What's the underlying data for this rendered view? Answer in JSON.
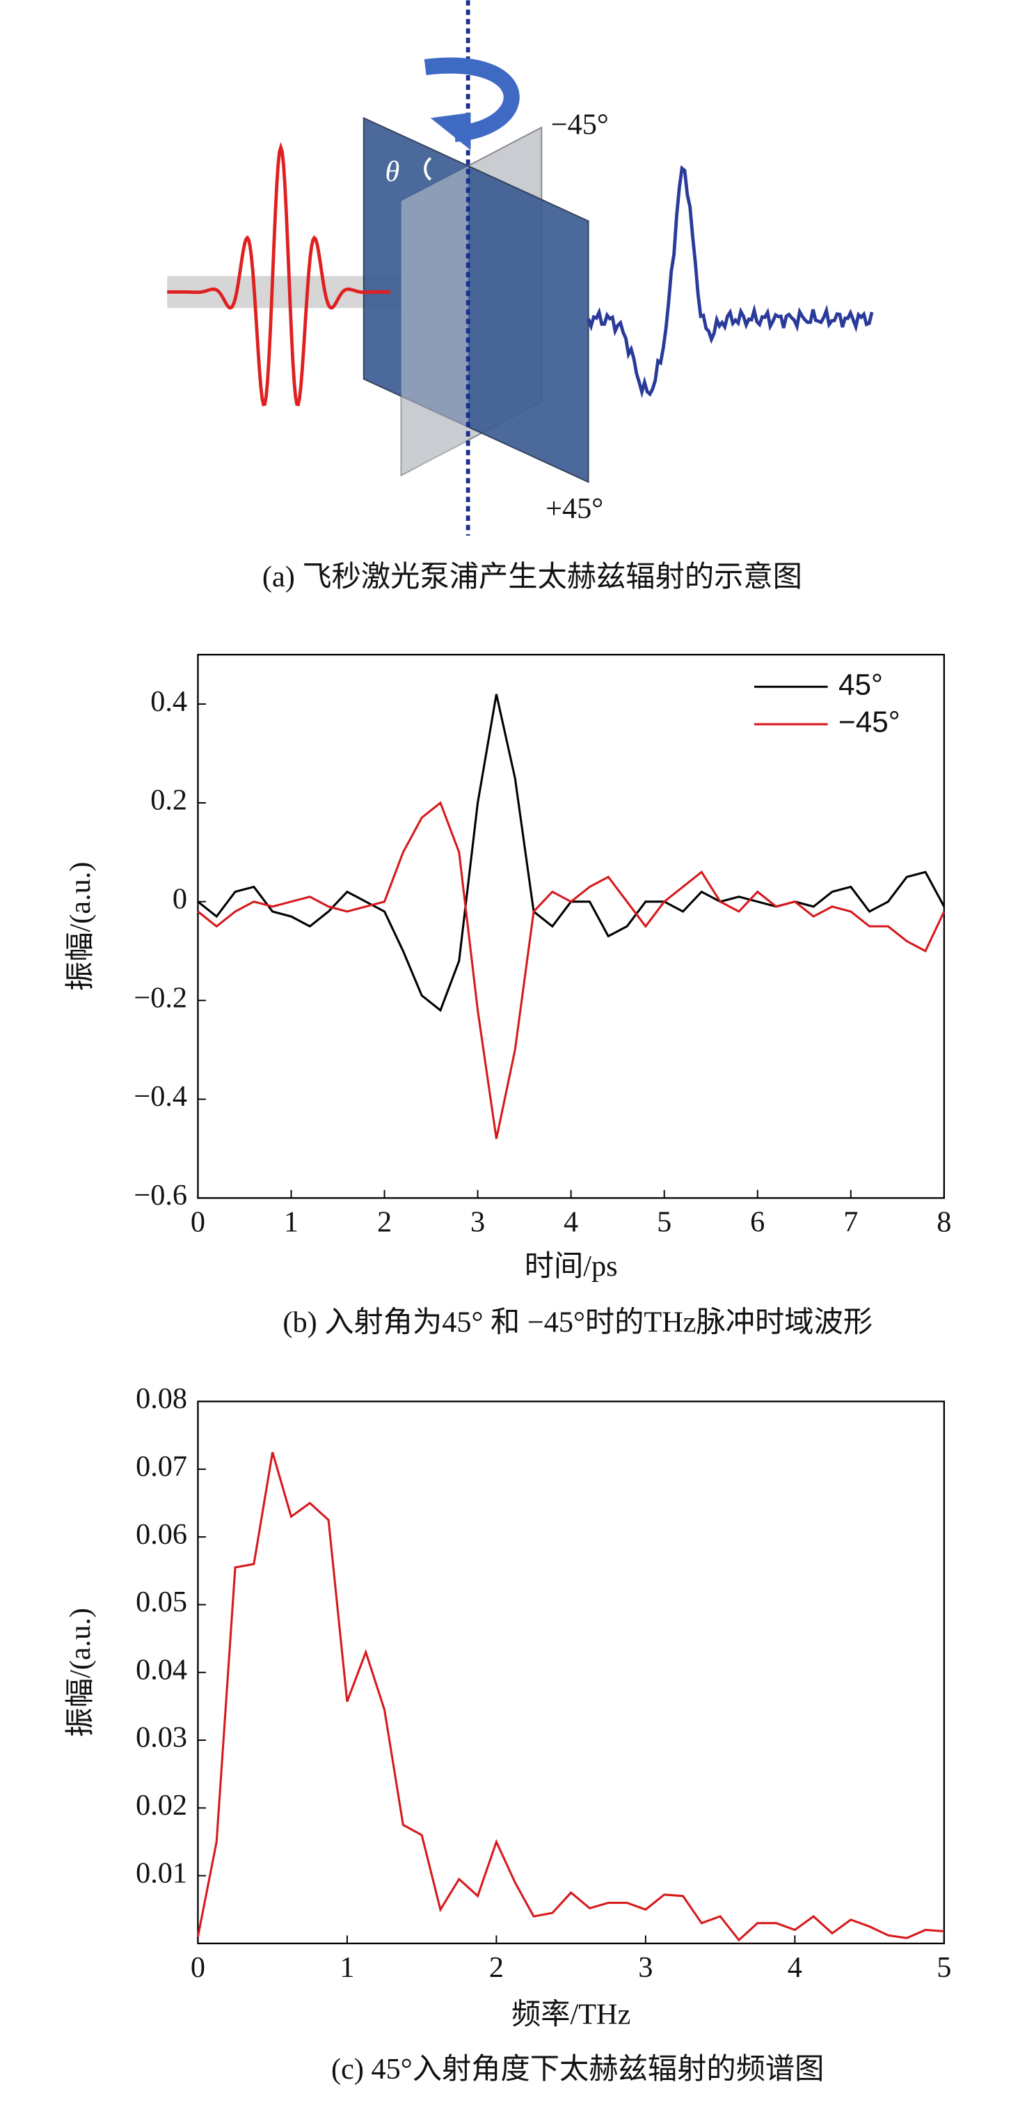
{
  "diagram": {
    "labels": [
      "−45°",
      "+45°",
      "θ"
    ],
    "caption": "(a) 飞秒激光泵浦产生太赫兹辐射的示意图"
  },
  "chart_data": [
    {
      "type": "line",
      "caption": "(b) 入射角为45° 和 −45°时的THz脉冲时域波形",
      "x_label": "时间/ps",
      "y_label": "振幅/(a.u.)",
      "x": [
        0,
        0.2,
        0.4,
        0.6,
        0.8,
        1.0,
        1.2,
        1.4,
        1.6,
        1.8,
        2.0,
        2.2,
        2.4,
        2.6,
        2.8,
        3.0,
        3.2,
        3.4,
        3.6,
        3.8,
        4.0,
        4.2,
        4.4,
        4.6,
        4.8,
        5.0,
        5.2,
        5.4,
        5.6,
        5.8,
        6.0,
        6.2,
        6.4,
        6.6,
        6.8,
        7.0,
        7.2,
        7.4,
        7.6,
        7.8,
        8.0
      ],
      "series": [
        {
          "name": "45°",
          "color": "#000000",
          "values": [
            0,
            -0.03,
            0.02,
            0.03,
            -0.02,
            -0.03,
            -0.05,
            -0.02,
            0.02,
            0.0,
            -0.02,
            -0.1,
            -0.19,
            -0.22,
            -0.12,
            0.2,
            0.42,
            0.25,
            -0.02,
            -0.05,
            0.0,
            0.0,
            -0.07,
            -0.05,
            0.0,
            0.0,
            -0.02,
            0.02,
            0.0,
            0.01,
            0.0,
            -0.01,
            0.0,
            -0.01,
            0.02,
            0.03,
            -0.02,
            0.0,
            0.05,
            0.06,
            -0.01
          ]
        },
        {
          "name": "−45°",
          "color": "#d7191c",
          "values": [
            -0.02,
            -0.05,
            -0.02,
            0.0,
            -0.01,
            0.0,
            0.01,
            -0.01,
            -0.02,
            -0.01,
            0.0,
            0.1,
            0.17,
            0.2,
            0.1,
            -0.22,
            -0.48,
            -0.3,
            -0.02,
            0.02,
            0.0,
            0.03,
            0.05,
            0.0,
            -0.05,
            0.0,
            0.03,
            0.06,
            0.0,
            -0.02,
            0.02,
            -0.01,
            0.0,
            -0.03,
            -0.01,
            -0.02,
            -0.05,
            -0.05,
            -0.08,
            -0.1,
            -0.02
          ]
        }
      ],
      "xlim": [
        0,
        8
      ],
      "xticks": [
        0,
        1,
        2,
        3,
        4,
        5,
        6,
        7,
        8
      ],
      "ylim": [
        -0.6,
        0.5
      ],
      "yticks": [
        {
          "value": -0.6,
          "label": "−0.6"
        },
        {
          "value": -0.4,
          "label": "−0.4"
        },
        {
          "value": -0.2,
          "label": "−0.2"
        },
        0,
        0.2,
        0.4
      ],
      "legend": "upper right"
    },
    {
      "type": "line",
      "caption": "(c) 45°入射角度下太赫兹辐射的频谱图",
      "x_label": "频率/THz",
      "y_label": "振幅/(a.u.)",
      "x": [
        0,
        0.125,
        0.25,
        0.375,
        0.5,
        0.625,
        0.75,
        0.875,
        1.0,
        1.125,
        1.25,
        1.375,
        1.5,
        1.625,
        1.75,
        1.875,
        2.0,
        2.125,
        2.25,
        2.375,
        2.5,
        2.625,
        2.75,
        2.875,
        3.0,
        3.125,
        3.25,
        3.375,
        3.5,
        3.625,
        3.75,
        3.875,
        4.0,
        4.125,
        4.25,
        4.375,
        4.5,
        4.625,
        4.75,
        4.875,
        5.0
      ],
      "series": [
        {
          "name": null,
          "color": "#d7191c",
          "values": [
            0.001,
            0.015,
            0.0555,
            0.056,
            0.0725,
            0.063,
            0.065,
            0.0625,
            0.0357,
            0.043,
            0.0345,
            0.0175,
            0.016,
            0.005,
            0.0095,
            0.007,
            0.015,
            0.009,
            0.004,
            0.0045,
            0.0075,
            0.0052,
            0.006,
            0.006,
            0.005,
            0.0072,
            0.007,
            0.003,
            0.004,
            0.0005,
            0.003,
            0.003,
            0.002,
            0.004,
            0.0015,
            0.0035,
            0.0025,
            0.0012,
            0.0008,
            0.002,
            0.0018
          ]
        }
      ],
      "xlim": [
        0,
        5
      ],
      "xticks": [
        0,
        1,
        2,
        3,
        4,
        5
      ],
      "ylim": [
        0,
        0.08
      ],
      "yticks": [
        0.01,
        0.02,
        0.03,
        0.04,
        0.05,
        0.06,
        0.07,
        0.08
      ]
    }
  ]
}
